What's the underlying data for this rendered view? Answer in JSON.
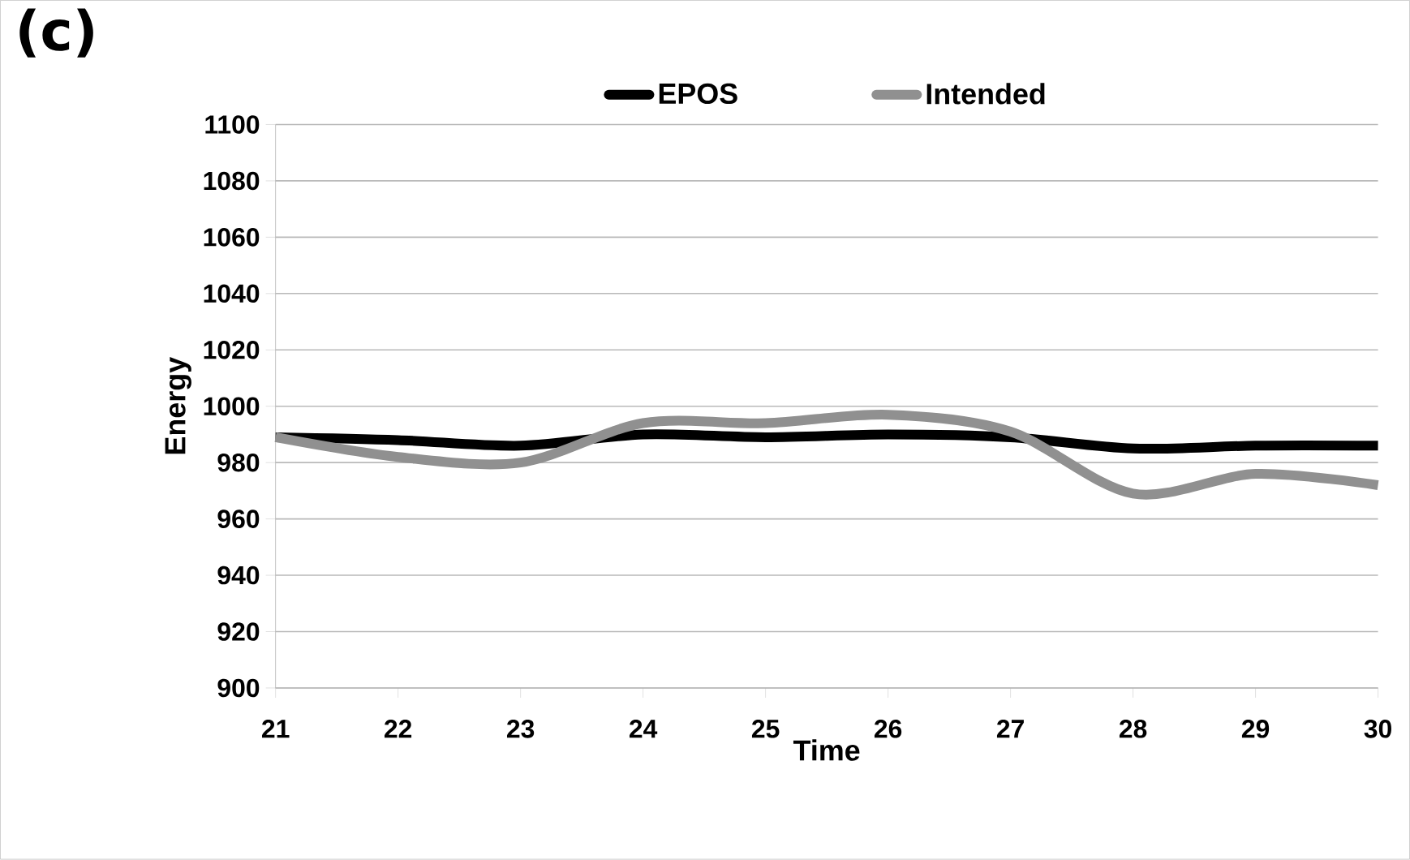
{
  "chart_data": {
    "type": "line",
    "title": "(c)",
    "xlabel": "Time",
    "ylabel": "Energy",
    "x": [
      21,
      22,
      23,
      24,
      25,
      26,
      27,
      28,
      29,
      30
    ],
    "series": [
      {
        "name": "EPOS",
        "color": "#000000",
        "values": [
          989,
          988,
          986,
          990,
          989,
          990,
          989,
          985,
          986,
          986
        ]
      },
      {
        "name": "Intended",
        "color": "#909090",
        "values": [
          989,
          982,
          980,
          994,
          994,
          997,
          991,
          969,
          976,
          972
        ]
      }
    ],
    "xlim": [
      21,
      30
    ],
    "xticks": [
      21,
      22,
      23,
      24,
      25,
      26,
      27,
      28,
      29,
      30
    ],
    "ylim": [
      900,
      1100
    ],
    "yticks": [
      900,
      920,
      940,
      960,
      980,
      1000,
      1020,
      1040,
      1060,
      1080,
      1100
    ],
    "grid": "y",
    "legend": "top",
    "marker": "none",
    "line_style": "solid"
  }
}
